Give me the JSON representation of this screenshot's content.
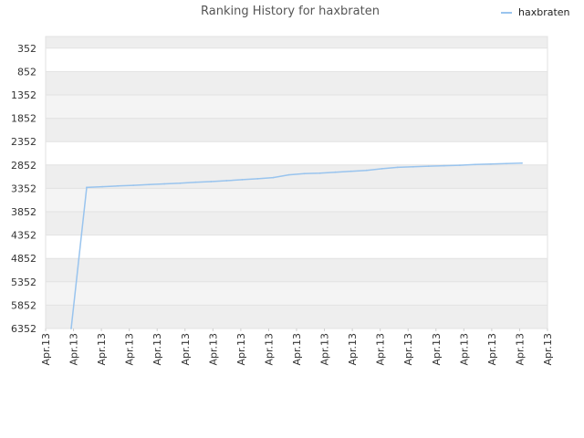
{
  "chart_data": {
    "type": "line",
    "title": "Ranking History for haxbraten",
    "xlabel": "",
    "ylabel": "",
    "y_inverted": true,
    "ylim": [
      102,
      6352
    ],
    "y_ticks": [
      352,
      852,
      1352,
      1852,
      2352,
      2852,
      3352,
      3852,
      4352,
      4852,
      5352,
      5852,
      6352
    ],
    "x_tick_labels": [
      "Apr.13",
      "Apr.13",
      "Apr.13",
      "Apr.13",
      "Apr.13",
      "Apr.13",
      "Apr.13",
      "Apr.13",
      "Apr.13",
      "Apr.13",
      "Apr.13",
      "Apr.13",
      "Apr.13",
      "Apr.13",
      "Apr.13",
      "Apr.13",
      "Apr.13",
      "Apr.13",
      "Apr.13"
    ],
    "legend_position": "top-right",
    "grid": true,
    "series": [
      {
        "name": "haxbraten",
        "color": "#99c4ee",
        "values": [
          6352,
          3332,
          3317,
          3302,
          3287,
          3272,
          3257,
          3242,
          3222,
          3207,
          3187,
          3167,
          3147,
          3122,
          3062,
          3037,
          3027,
          3007,
          2987,
          2967,
          2932,
          2902,
          2892,
          2877,
          2867,
          2857,
          2842,
          2832,
          2822,
          2812
        ]
      }
    ]
  }
}
